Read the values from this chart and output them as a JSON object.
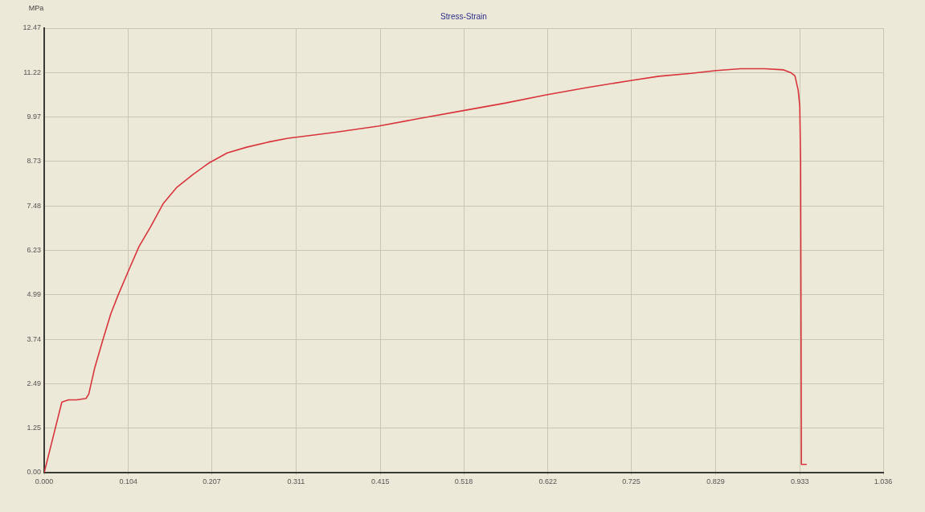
{
  "chart_data": {
    "type": "line",
    "title": "Stress-Strain",
    "ylabel": "MPa",
    "x": [
      0,
      0.0218,
      0.03,
      0.04,
      0.0516,
      0.055,
      0.0625,
      0.0724,
      0.0823,
      0.0913,
      0.104,
      0.117,
      0.131,
      0.147,
      0.164,
      0.184,
      0.203,
      0.226,
      0.25,
      0.276,
      0.301,
      0.325,
      0.36,
      0.412,
      0.46,
      0.516,
      0.57,
      0.62,
      0.67,
      0.724,
      0.759,
      0.799,
      0.83,
      0.86,
      0.89,
      0.913,
      0.922,
      0.927,
      0.931,
      0.933,
      0.934,
      0.935,
      0.941
    ],
    "series": [
      {
        "color": "#d9343c",
        "values": [
          0,
          1.98,
          2.04,
          2.04,
          2.08,
          2.2,
          2.95,
          3.72,
          4.46,
          4.98,
          5.66,
          6.34,
          6.88,
          7.55,
          8.01,
          8.37,
          8.68,
          8.97,
          9.13,
          9.27,
          9.38,
          9.45,
          9.55,
          9.72,
          9.92,
          10.15,
          10.37,
          10.6,
          10.8,
          11.0,
          11.12,
          11.2,
          11.28,
          11.33,
          11.33,
          11.3,
          11.22,
          11.13,
          10.73,
          10.28,
          8.7,
          0.23,
          0.23
        ]
      }
    ],
    "xlim": [
      0,
      1.036
    ],
    "xticks": [
      {
        "value": 0,
        "label": "0.000"
      },
      {
        "value": 0.104,
        "label": "0.104"
      },
      {
        "value": 0.207,
        "label": "0.207"
      },
      {
        "value": 0.311,
        "label": "0.311"
      },
      {
        "value": 0.415,
        "label": "0.415"
      },
      {
        "value": 0.518,
        "label": "0.518"
      },
      {
        "value": 0.622,
        "label": "0.622"
      },
      {
        "value": 0.725,
        "label": "0.725"
      },
      {
        "value": 0.829,
        "label": "0.829"
      },
      {
        "value": 0.933,
        "label": "0.933"
      },
      {
        "value": 1.036,
        "label": "1.036"
      }
    ],
    "ylim": [
      0,
      12.47
    ],
    "yticks": [
      {
        "value": 0,
        "label": "0.00"
      },
      {
        "value": 1.25,
        "label": "1.25"
      },
      {
        "value": 2.49,
        "label": "2.49"
      },
      {
        "value": 3.74,
        "label": "3.74"
      },
      {
        "value": 4.99,
        "label": "4.99"
      },
      {
        "value": 6.23,
        "label": "6.23"
      },
      {
        "value": 7.48,
        "label": "7.48"
      },
      {
        "value": 8.73,
        "label": "8.73"
      },
      {
        "value": 9.97,
        "label": "9.97"
      },
      {
        "value": 11.22,
        "label": "11.22"
      },
      {
        "value": 12.47,
        "label": "12.47"
      }
    ],
    "grid": true,
    "legend": false
  }
}
